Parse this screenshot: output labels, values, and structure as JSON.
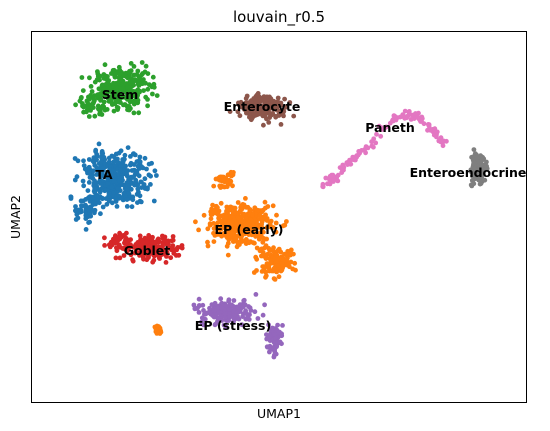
{
  "chart_data": {
    "type": "scatter",
    "title": "louvain_r0.5",
    "xlabel": "UMAP1",
    "ylabel": "UMAP2",
    "ticks": "none",
    "legend": "on data",
    "clusters": [
      {
        "name": "Stem",
        "color": "#2ca02c",
        "label_at": [
          120,
          95
        ]
      },
      {
        "name": "TA",
        "color": "#1f77b4",
        "label_at": [
          104,
          175
        ]
      },
      {
        "name": "Goblet",
        "color": "#d62728",
        "label_at": [
          147,
          251
        ]
      },
      {
        "name": "EP (early)",
        "color": "#ff7f0e",
        "label_at": [
          249,
          230
        ]
      },
      {
        "name": "EP (stress)",
        "color": "#9467bd",
        "label_at": [
          233,
          326
        ]
      },
      {
        "name": "Enterocyte",
        "color": "#8c564b",
        "label_at": [
          262,
          107
        ]
      },
      {
        "name": "Paneth",
        "color": "#e377c2",
        "label_at": [
          390,
          128
        ]
      },
      {
        "name": "Enteroendocrine",
        "color": "#7f7f7f",
        "label_at": [
          468,
          173
        ]
      }
    ]
  }
}
